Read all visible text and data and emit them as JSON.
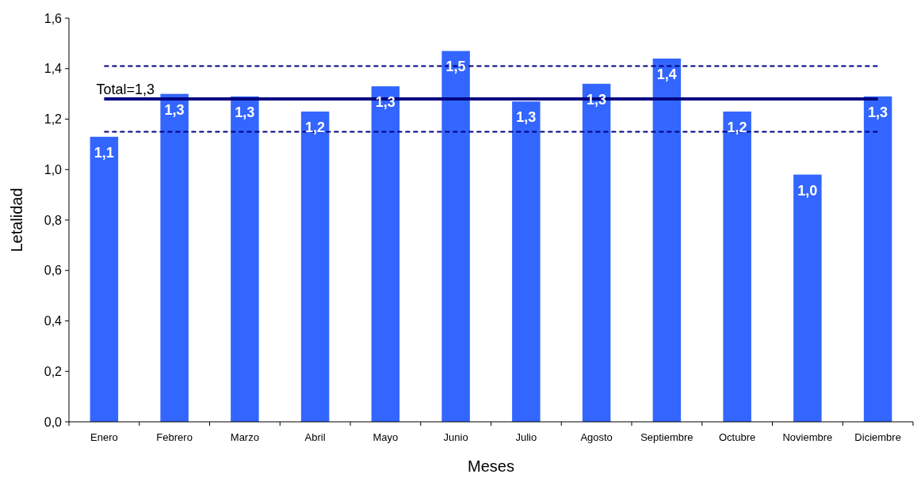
{
  "chart_data": {
    "type": "bar",
    "xlabel": "Meses",
    "ylabel": "Letalidad",
    "categories": [
      "Enero",
      "Febrero",
      "Marzo",
      "Abril",
      "Mayo",
      "Junio",
      "Julio",
      "Agosto",
      "Septiembre",
      "Octubre",
      "Noviembre",
      "Diciembre"
    ],
    "values": [
      1.13,
      1.3,
      1.29,
      1.23,
      1.33,
      1.47,
      1.27,
      1.34,
      1.44,
      1.23,
      0.98,
      1.29
    ],
    "value_labels": [
      "1,1",
      "1,3",
      "1,3",
      "1,2",
      "1,3",
      "1,5",
      "1,3",
      "1,3",
      "1,4",
      "1,2",
      "1,0",
      "1,3"
    ],
    "color": "#3366ff",
    "ylim": [
      0,
      1.6
    ],
    "yticks": [
      {
        "value": 0,
        "label": "0,0"
      },
      {
        "value": 0.2,
        "label": "0,2"
      },
      {
        "value": 0.4,
        "label": "0,4"
      },
      {
        "value": 0.6,
        "label": "0,6"
      },
      {
        "value": 0.8,
        "label": "0,8"
      },
      {
        "value": 1.0,
        "label": "1,0"
      },
      {
        "value": 1.2,
        "label": "1,2"
      },
      {
        "value": 1.4,
        "label": "1,4"
      },
      {
        "value": 1.6,
        "label": "1,6"
      }
    ],
    "ref_lines": [
      {
        "axis": "y",
        "value": 1.28,
        "label": "Total=1,3",
        "color": "#000080",
        "line_style": "solid"
      },
      {
        "axis": "y",
        "value": 1.41,
        "color": "#000080",
        "line_style": "dashed"
      },
      {
        "axis": "y",
        "value": 1.15,
        "color": "#000080",
        "line_style": "dashed"
      }
    ],
    "grid": false
  }
}
